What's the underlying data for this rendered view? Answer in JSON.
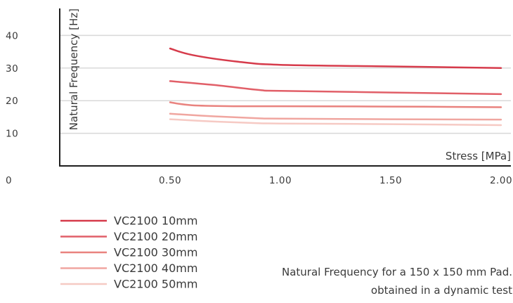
{
  "chart_data": {
    "type": "line",
    "xlabel": "Stress [MPa]",
    "ylabel": "Natural Frequency [Hz]",
    "xlim": [
      0,
      2.05
    ],
    "ylim": [
      0,
      45
    ],
    "x_ticks": [
      "0.50",
      "1.00",
      "1.50",
      "2.00"
    ],
    "x_tick_values": [
      0.5,
      1.0,
      1.5,
      2.0
    ],
    "y_ticks": [
      "10",
      "20",
      "30",
      "40"
    ],
    "y_tick_values": [
      10,
      20,
      30,
      40
    ],
    "origin_label": "0",
    "grid": "horizontal",
    "legend_position": "bottom-left",
    "series": [
      {
        "name": "VC2100 10mm",
        "color": "#d63b4b",
        "x": [
          0.5,
          0.6,
          0.8,
          1.0,
          1.5,
          2.0
        ],
        "y": [
          36.0,
          34.0,
          32.0,
          31.0,
          30.5,
          30.0
        ]
      },
      {
        "name": "VC2100 20mm",
        "color": "#e15f68",
        "x": [
          0.5,
          0.7,
          0.9,
          1.0,
          1.5,
          2.0
        ],
        "y": [
          26.0,
          24.8,
          23.3,
          23.0,
          22.5,
          22.0
        ]
      },
      {
        "name": "VC2100 30mm",
        "color": "#e9837f",
        "x": [
          0.5,
          0.6,
          0.8,
          1.0,
          1.5,
          2.0
        ],
        "y": [
          19.5,
          18.6,
          18.3,
          18.3,
          18.2,
          18.0
        ]
      },
      {
        "name": "VC2100 40mm",
        "color": "#f0a6a0",
        "x": [
          0.5,
          0.7,
          0.9,
          1.0,
          1.5,
          2.0
        ],
        "y": [
          16.0,
          15.2,
          14.6,
          14.5,
          14.3,
          14.2
        ]
      },
      {
        "name": "VC2100 50mm",
        "color": "#f6cac4",
        "x": [
          0.5,
          0.7,
          0.9,
          1.0,
          1.5,
          2.0
        ],
        "y": [
          14.3,
          13.6,
          13.1,
          13.0,
          12.8,
          12.5
        ]
      }
    ],
    "annotation": [
      "Natural Frequency for a 150 x 150 mm Pad.",
      "obtained in a dynamic test"
    ]
  }
}
